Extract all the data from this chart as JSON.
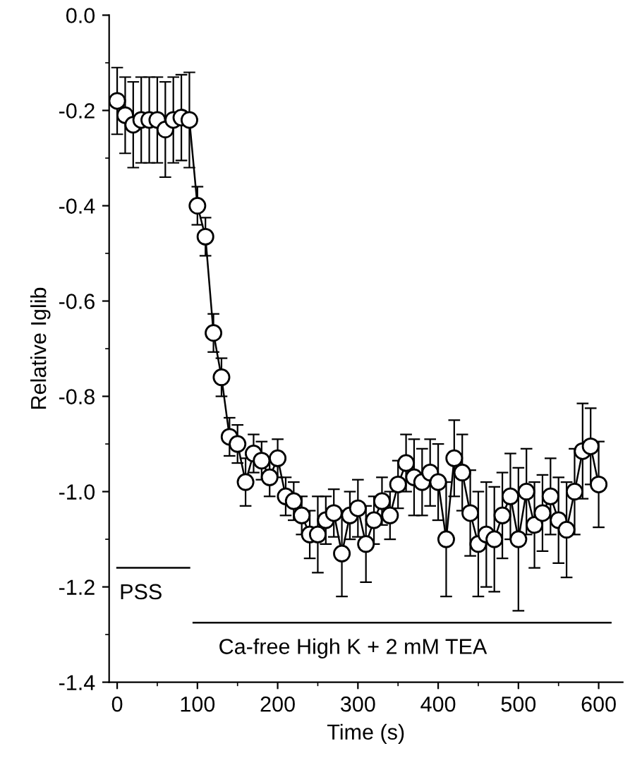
{
  "chart_data": {
    "type": "line",
    "xlabel": "Time (s)",
    "ylabel": "Relative Iglib",
    "xlim": [
      -10,
      630
    ],
    "xticks": [
      0,
      100,
      200,
      300,
      400,
      500,
      600
    ],
    "ylim": [
      -1.4,
      0.0
    ],
    "yticks": [
      -1.4,
      -1.2,
      {
        "value": -1.0,
        "label": "-1.0"
      },
      -0.8,
      -0.6,
      -0.4,
      -0.2,
      {
        "value": 0.0,
        "label": "0.0"
      }
    ],
    "marker": "circle",
    "line_style": "solid",
    "grid": false,
    "legend": false,
    "series": [
      {
        "color": "#000000",
        "x": [
          0,
          10,
          20,
          30,
          40,
          50,
          60,
          70,
          80,
          90,
          100,
          110,
          120,
          130,
          140,
          150,
          160,
          170,
          180,
          190,
          200,
          210,
          220,
          230,
          240,
          250,
          260,
          270,
          280,
          290,
          300,
          310,
          320,
          330,
          340,
          350,
          360,
          370,
          380,
          390,
          400,
          410,
          420,
          430,
          440,
          450,
          460,
          470,
          480,
          490,
          500,
          510,
          520,
          530,
          540,
          550,
          560,
          570,
          580,
          590,
          600
        ],
        "values": [
          -0.18,
          -0.21,
          -0.23,
          -0.22,
          -0.22,
          -0.22,
          -0.24,
          -0.22,
          -0.215,
          -0.22,
          -0.4,
          -0.465,
          -0.667,
          -0.76,
          -0.885,
          -0.9,
          -0.98,
          -0.92,
          -0.935,
          -0.97,
          -0.93,
          -1.01,
          -1.02,
          -1.05,
          -1.09,
          -1.09,
          -1.06,
          -1.045,
          -1.13,
          -1.05,
          -1.035,
          -1.11,
          -1.06,
          -1.02,
          -1.05,
          -0.985,
          -0.94,
          -0.97,
          -0.98,
          -0.96,
          -0.98,
          -1.1,
          -0.93,
          -0.96,
          -1.045,
          -1.11,
          -1.09,
          -1.1,
          -1.05,
          -1.01,
          -1.1,
          -1.0,
          -1.07,
          -1.045,
          -1.01,
          -1.06,
          -1.08,
          -1.0,
          -0.915,
          -0.905,
          -0.985
        ],
        "errors": [
          0.07,
          0.08,
          0.09,
          0.09,
          0.09,
          0.09,
          0.1,
          0.09,
          0.09,
          0.1,
          0.04,
          0.04,
          0.04,
          0.04,
          0.04,
          0.04,
          0.05,
          0.04,
          0.04,
          0.04,
          0.04,
          0.04,
          0.04,
          0.04,
          0.05,
          0.08,
          0.05,
          0.05,
          0.09,
          0.05,
          0.06,
          0.08,
          0.05,
          0.05,
          0.05,
          0.05,
          0.06,
          0.08,
          0.07,
          0.07,
          0.08,
          0.12,
          0.08,
          0.08,
          0.09,
          0.11,
          0.11,
          0.11,
          0.09,
          0.09,
          0.15,
          0.09,
          0.09,
          0.08,
          0.08,
          0.09,
          0.1,
          0.09,
          0.1,
          0.08,
          0.09
        ]
      },
      {
        "color": "#000000",
        "type": "line",
        "marker": "none",
        "x": [
          0,
          90
        ],
        "values": [
          -1.16,
          -1.16
        ]
      },
      {
        "color": "#000000",
        "type": "line",
        "marker": "none",
        "x": [
          95,
          615
        ],
        "values": [
          -1.275,
          -1.275
        ]
      }
    ],
    "annotations": [
      "PSS",
      "Ca-free High K + 2 mM TEA"
    ]
  }
}
